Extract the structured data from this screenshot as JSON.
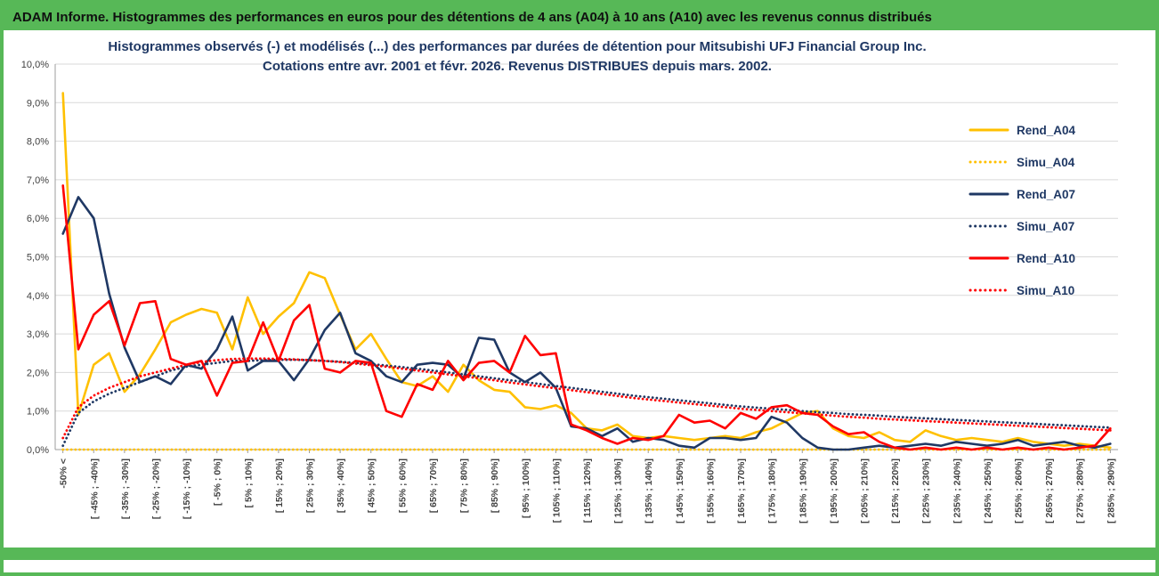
{
  "header": {
    "title": "ADAM Informe. Histogrammes des performances en euros pour des détentions de 4 ans (A04) à 10 ans (A10) avec les revenus connus distribués"
  },
  "colors": {
    "accent_green": "#57B857",
    "header_text": "#101010",
    "grid": "#D9D9D9",
    "axis": "#9C9C9C",
    "axis_text": "#404040",
    "title_text": "#1F3864",
    "legend_text": "#1F3864"
  },
  "chart_data": {
    "type": "line",
    "title_line1": "Histogrammes observés (-) et modélisés (...) des performances par durées de détention pour Mitsubishi UFJ Financial Group Inc.",
    "title_line2": "Cotations entre avr. 2001 et févr. 2026. Revenus DISTRIBUES depuis mars. 2002.",
    "ylim": [
      0,
      10
    ],
    "ytick_step": 1,
    "ytick_labels": [
      "0,0%",
      "1,0%",
      "2,0%",
      "3,0%",
      "4,0%",
      "5,0%",
      "6,0%",
      "7,0%",
      "8,0%",
      "9,0%",
      "10,0%"
    ],
    "grid": true,
    "legend_position": "right-inside",
    "xtick_labels": [
      "-50% <",
      "[ -45% ; -40%]",
      "[ -35% ; -30%]",
      "[ -25% ; -20%]",
      "[ -15% ; -10%]",
      "[ -5% ; 0%]",
      "[ 5% ; 10%]",
      "[ 15% ; 20%]",
      "[ 25% ; 30%]",
      "[ 35% ; 40%]",
      "[ 45% ; 50%]",
      "[ 55% ; 60%]",
      "[ 65% ; 70%]",
      "[ 75% ; 80%]",
      "[ 85% ; 90%]",
      "[ 95% ; 100%]",
      "[ 105% ; 110%]",
      "[ 115% ; 120%]",
      "[ 125% ; 130%]",
      "[ 135% ; 140%]",
      "[ 145% ; 150%]",
      "[ 155% ; 160%]",
      "[ 165% ; 170%]",
      "[ 175% ; 180%]",
      "[ 185% ; 190%]",
      "[ 195% ; 200%]",
      "[ 205% ; 210%]",
      "[ 215% ; 220%]",
      "[ 225% ; 230%]",
      "[ 235% ; 240%]",
      "[ 245% ; 250%]",
      "[ 255% ; 260%]",
      "[ 265% ; 270%]",
      "[ 275% ; 280%]",
      "[ 285% ; 290%]"
    ],
    "xtick_every_n_bins": 2,
    "series": [
      {
        "name": "Rend_A04",
        "color": "#FFC000",
        "style": "solid",
        "values": [
          9.25,
          0.9,
          2.2,
          2.5,
          1.5,
          1.95,
          2.6,
          3.3,
          3.5,
          3.65,
          3.55,
          2.6,
          3.95,
          3.0,
          3.45,
          3.8,
          4.6,
          4.45,
          3.5,
          2.6,
          3.0,
          2.35,
          1.75,
          1.65,
          1.9,
          1.5,
          2.2,
          1.8,
          1.55,
          1.5,
          1.1,
          1.05,
          1.15,
          0.95,
          0.55,
          0.5,
          0.65,
          0.35,
          0.3,
          0.35,
          0.3,
          0.25,
          0.3,
          0.35,
          0.3,
          0.45,
          0.55,
          0.75,
          0.95,
          1.0,
          0.55,
          0.35,
          0.3,
          0.45,
          0.25,
          0.2,
          0.5,
          0.35,
          0.25,
          0.3,
          0.25,
          0.2,
          0.3,
          0.2,
          0.15,
          0.1,
          0.15,
          0.1,
          0.05
        ]
      },
      {
        "name": "Simu_A04",
        "color": "#FFC000",
        "style": "dotted",
        "values": [
          0,
          0,
          0,
          0,
          0,
          0,
          0,
          0,
          0,
          0,
          0,
          0,
          0,
          0,
          0,
          0,
          0,
          0,
          0,
          0,
          0,
          0,
          0,
          0,
          0,
          0,
          0,
          0,
          0,
          0,
          0,
          0,
          0,
          0,
          0,
          0,
          0,
          0,
          0,
          0,
          0,
          0,
          0,
          0,
          0,
          0,
          0,
          0,
          0,
          0,
          0,
          0,
          0,
          0,
          0,
          0,
          0,
          0,
          0,
          0,
          0,
          0,
          0,
          0,
          0,
          0,
          0,
          0,
          0
        ]
      },
      {
        "name": "Rend_A07",
        "color": "#1F3864",
        "style": "solid",
        "values": [
          5.6,
          6.55,
          6.0,
          4.05,
          2.65,
          1.75,
          1.9,
          1.7,
          2.2,
          2.1,
          2.6,
          3.45,
          2.05,
          2.3,
          2.3,
          1.8,
          2.35,
          3.1,
          3.55,
          2.5,
          2.3,
          1.9,
          1.75,
          2.2,
          2.25,
          2.2,
          1.85,
          2.9,
          2.85,
          2.0,
          1.75,
          2.0,
          1.6,
          0.6,
          0.55,
          0.35,
          0.55,
          0.2,
          0.3,
          0.25,
          0.1,
          0.05,
          0.3,
          0.3,
          0.25,
          0.3,
          0.85,
          0.7,
          0.3,
          0.05,
          0.0,
          0.0,
          0.05,
          0.1,
          0.05,
          0.1,
          0.15,
          0.1,
          0.2,
          0.15,
          0.1,
          0.15,
          0.25,
          0.1,
          0.15,
          0.2,
          0.1,
          0.05,
          0.15
        ]
      },
      {
        "name": "Simu_A07",
        "color": "#1F3864",
        "style": "dotted",
        "values": [
          0.1,
          0.95,
          1.25,
          1.45,
          1.6,
          1.75,
          1.9,
          2.05,
          2.15,
          2.2,
          2.25,
          2.3,
          2.3,
          2.32,
          2.33,
          2.33,
          2.32,
          2.3,
          2.28,
          2.25,
          2.22,
          2.18,
          2.14,
          2.1,
          2.05,
          2.0,
          1.95,
          1.9,
          1.85,
          1.8,
          1.75,
          1.7,
          1.65,
          1.6,
          1.55,
          1.5,
          1.45,
          1.4,
          1.36,
          1.32,
          1.28,
          1.24,
          1.2,
          1.16,
          1.12,
          1.09,
          1.06,
          1.03,
          1.0,
          0.97,
          0.95,
          0.92,
          0.9,
          0.88,
          0.85,
          0.83,
          0.81,
          0.79,
          0.77,
          0.75,
          0.73,
          0.71,
          0.69,
          0.67,
          0.65,
          0.63,
          0.61,
          0.59,
          0.57
        ]
      },
      {
        "name": "Rend_A10",
        "color": "#FF0000",
        "style": "solid",
        "values": [
          6.85,
          2.6,
          3.5,
          3.85,
          2.7,
          3.8,
          3.85,
          2.35,
          2.2,
          2.3,
          1.4,
          2.25,
          2.3,
          3.3,
          2.3,
          3.35,
          3.75,
          2.1,
          2.0,
          2.3,
          2.25,
          1.0,
          0.85,
          1.7,
          1.55,
          2.3,
          1.8,
          2.25,
          2.3,
          2.0,
          2.95,
          2.45,
          2.5,
          0.65,
          0.5,
          0.3,
          0.15,
          0.3,
          0.25,
          0.35,
          0.9,
          0.7,
          0.75,
          0.55,
          0.95,
          0.8,
          1.1,
          1.15,
          0.95,
          0.9,
          0.6,
          0.4,
          0.45,
          0.2,
          0.05,
          0.0,
          0.05,
          0.0,
          0.05,
          0.0,
          0.05,
          0.0,
          0.05,
          0.0,
          0.05,
          0.0,
          0.05,
          0.1,
          0.55
        ]
      },
      {
        "name": "Simu_A10",
        "color": "#FF0000",
        "style": "dotted",
        "values": [
          0.3,
          1.1,
          1.4,
          1.6,
          1.75,
          1.9,
          2.0,
          2.1,
          2.2,
          2.27,
          2.32,
          2.35,
          2.36,
          2.36,
          2.35,
          2.34,
          2.32,
          2.3,
          2.27,
          2.23,
          2.19,
          2.15,
          2.1,
          2.05,
          2.0,
          1.95,
          1.9,
          1.85,
          1.8,
          1.74,
          1.69,
          1.64,
          1.59,
          1.54,
          1.49,
          1.44,
          1.39,
          1.34,
          1.3,
          1.26,
          1.22,
          1.18,
          1.14,
          1.1,
          1.06,
          1.03,
          1.0,
          0.97,
          0.94,
          0.91,
          0.88,
          0.85,
          0.83,
          0.8,
          0.78,
          0.76,
          0.74,
          0.72,
          0.7,
          0.68,
          0.66,
          0.64,
          0.62,
          0.6,
          0.58,
          0.56,
          0.54,
          0.52,
          0.5
        ]
      }
    ]
  }
}
